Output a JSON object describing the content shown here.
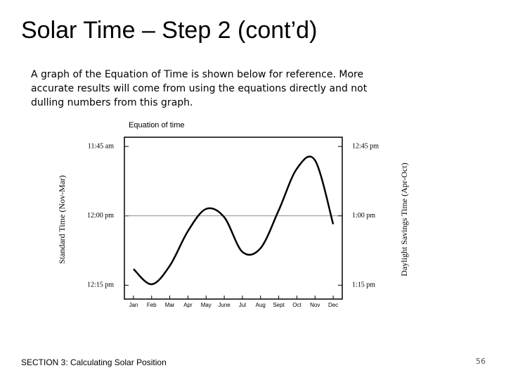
{
  "slide": {
    "title": "Solar Time – Step 2 (cont’d)",
    "body": [
      "A graph of the Equation of Time is shown below for reference. More",
      "accurate results will come from using the equations directly and not",
      "dulling numbers from this graph."
    ],
    "footer": "SECTION 3: Calculating Solar Position",
    "page_number": "56"
  },
  "chart_data": {
    "type": "line",
    "title": "Equation of time",
    "y_label": "Standard Time (Nov-Mar)",
    "y2_label": "Daylight Savings Time (Apr-Oct)",
    "categories": [
      "Jan",
      "Feb",
      "Mar",
      "Apr",
      "May",
      "June",
      "Jul",
      "Aug",
      "Sept",
      "Oct",
      "Nov",
      "Dec"
    ],
    "series": [
      {
        "name": "Equation of time",
        "color": "#000000",
        "values": [
          11.5,
          14.8,
          10.8,
          3.3,
          -1.5,
          0.3,
          7.8,
          7,
          -1.2,
          -10.2,
          -12,
          1.8
        ]
      }
    ],
    "ylim": [
      -17,
      18
    ],
    "y_inverted": true,
    "yticks": [
      {
        "value": -15,
        "label": "11:45 am"
      },
      {
        "value": 0,
        "label": "12:00 pm"
      },
      {
        "value": 15,
        "label": "12:15 pm"
      }
    ],
    "y2lim": [
      -17,
      18
    ],
    "y2ticks": [
      {
        "value": -15,
        "label": "12:45 pm"
      },
      {
        "value": 0,
        "label": "1:00 pm"
      },
      {
        "value": 15,
        "label": "1:15 pm"
      }
    ]
  }
}
